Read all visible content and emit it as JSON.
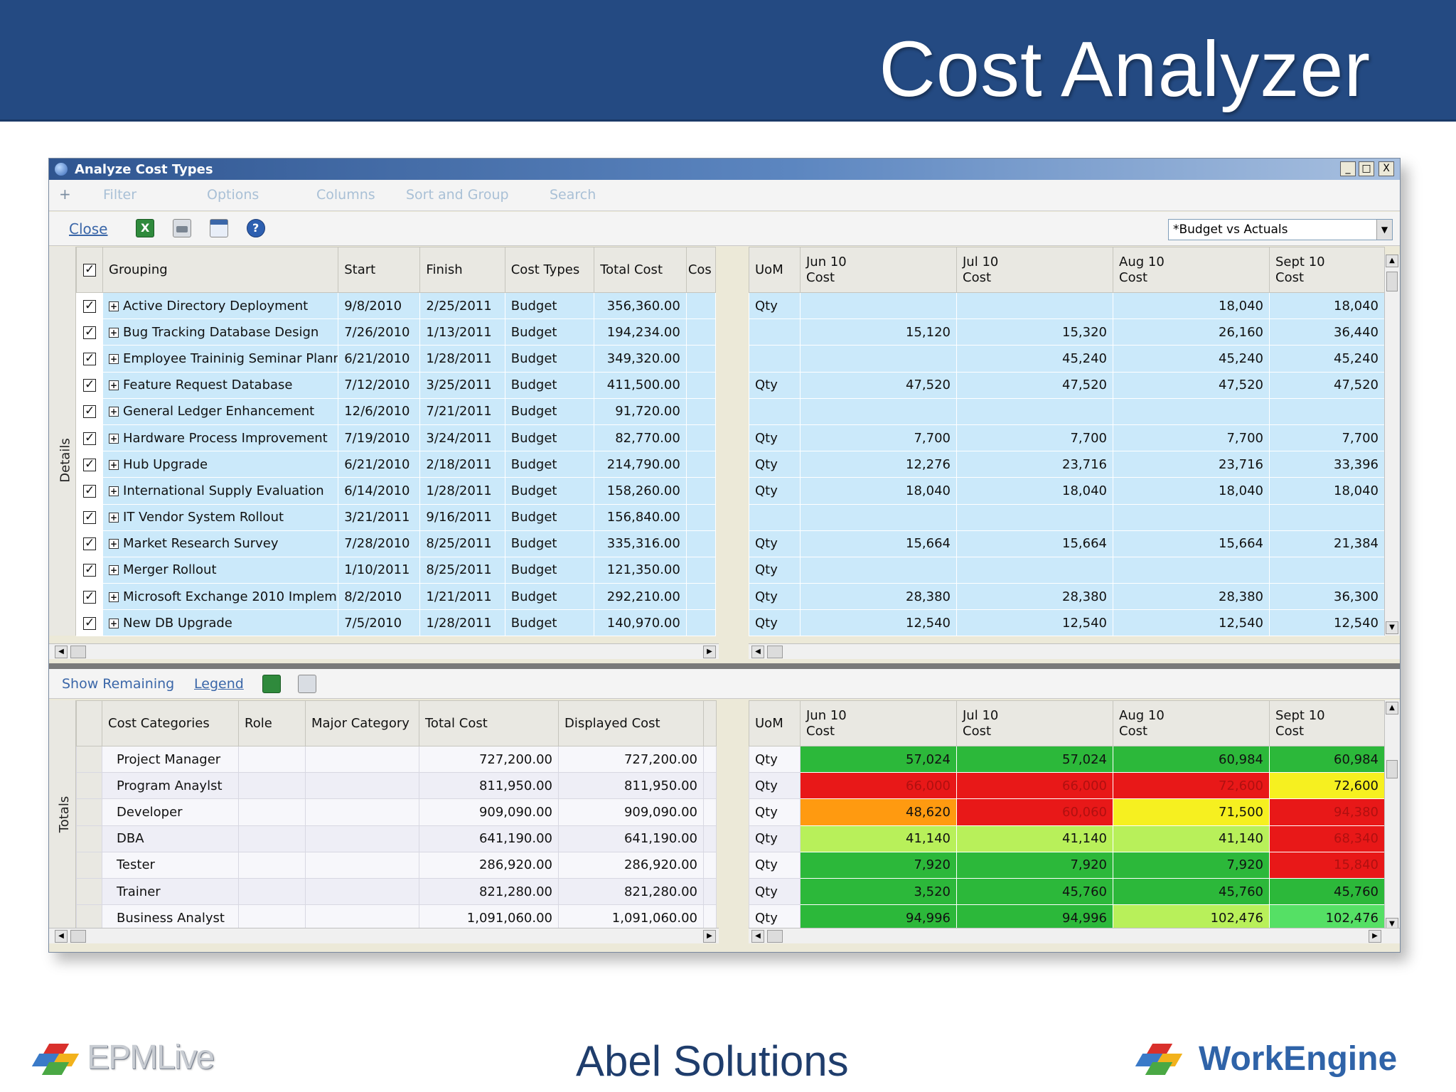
{
  "slide": {
    "title": "Cost Analyzer",
    "footer_company": "Abel Solutions",
    "footer_left_logo": "EPMLive",
    "footer_right_logo": "WorkEngine"
  },
  "window": {
    "title": "Analyze Cost Types",
    "controls": [
      "_",
      "□",
      "X"
    ]
  },
  "menu": {
    "plus": "+",
    "items": [
      "Filter",
      "Options",
      "Columns",
      "Sort and Group",
      "Search"
    ]
  },
  "toolbar": {
    "close_label": "Close",
    "icons": [
      "excel-icon",
      "print-icon",
      "calendar-icon",
      "help-icon"
    ],
    "view_selected": "*Budget vs Actuals"
  },
  "details": {
    "side_label": "Details",
    "headers": {
      "grouping": "Grouping",
      "start": "Start",
      "finish": "Finish",
      "cost_types": "Cost Types",
      "total_cost": "Total Cost",
      "cos": "Cos",
      "uom": "UoM",
      "periods": [
        {
          "month": "Jun 10",
          "sub": "Cost"
        },
        {
          "month": "Jul 10",
          "sub": "Cost"
        },
        {
          "month": "Aug 10",
          "sub": "Cost"
        },
        {
          "month": "Sept 10",
          "sub": "Cost"
        }
      ]
    },
    "rows": [
      {
        "name": "Active Directory Deployment",
        "start": "9/8/2010",
        "finish": "2/25/2011",
        "type": "Budget",
        "total": "356,360.00",
        "uom": "Qty",
        "jun": "",
        "jul": "",
        "aug": "18,040",
        "sep": "18,040"
      },
      {
        "name": "Bug Tracking Database Design",
        "start": "7/26/2010",
        "finish": "1/13/2011",
        "type": "Budget",
        "total": "194,234.00",
        "uom": "",
        "jun": "15,120",
        "jul": "15,320",
        "aug": "26,160",
        "sep": "36,440"
      },
      {
        "name": "Employee Traininig Seminar Plann",
        "start": "6/21/2010",
        "finish": "1/28/2011",
        "type": "Budget",
        "total": "349,320.00",
        "uom": "",
        "jun": "",
        "jul": "45,240",
        "aug": "45,240",
        "sep": "45,240"
      },
      {
        "name": "Feature Request Database",
        "start": "7/12/2010",
        "finish": "3/25/2011",
        "type": "Budget",
        "total": "411,500.00",
        "uom": "Qty",
        "jun": "47,520",
        "jul": "47,520",
        "aug": "47,520",
        "sep": "47,520"
      },
      {
        "name": "General Ledger Enhancement",
        "start": "12/6/2010",
        "finish": "7/21/2011",
        "type": "Budget",
        "total": "91,720.00",
        "uom": "",
        "jun": "",
        "jul": "",
        "aug": "",
        "sep": ""
      },
      {
        "name": "Hardware Process Improvement",
        "start": "7/19/2010",
        "finish": "3/24/2011",
        "type": "Budget",
        "total": "82,770.00",
        "uom": "Qty",
        "jun": "7,700",
        "jul": "7,700",
        "aug": "7,700",
        "sep": "7,700"
      },
      {
        "name": "Hub Upgrade",
        "start": "6/21/2010",
        "finish": "2/18/2011",
        "type": "Budget",
        "total": "214,790.00",
        "uom": "Qty",
        "jun": "12,276",
        "jul": "23,716",
        "aug": "23,716",
        "sep": "33,396"
      },
      {
        "name": "International Supply Evaluation",
        "start": "6/14/2010",
        "finish": "1/28/2011",
        "type": "Budget",
        "total": "158,260.00",
        "uom": "Qty",
        "jun": "18,040",
        "jul": "18,040",
        "aug": "18,040",
        "sep": "18,040"
      },
      {
        "name": "IT Vendor System Rollout",
        "start": "3/21/2011",
        "finish": "9/16/2011",
        "type": "Budget",
        "total": "156,840.00",
        "uom": "",
        "jun": "",
        "jul": "",
        "aug": "",
        "sep": ""
      },
      {
        "name": "Market Research Survey",
        "start": "7/28/2010",
        "finish": "8/25/2011",
        "type": "Budget",
        "total": "335,316.00",
        "uom": "Qty",
        "jun": "15,664",
        "jul": "15,664",
        "aug": "15,664",
        "sep": "21,384"
      },
      {
        "name": "Merger Rollout",
        "start": "1/10/2011",
        "finish": "8/25/2011",
        "type": "Budget",
        "total": "121,350.00",
        "uom": "Qty",
        "jun": "",
        "jul": "",
        "aug": "",
        "sep": ""
      },
      {
        "name": "Microsoft Exchange 2010 Implem",
        "start": "8/2/2010",
        "finish": "1/21/2011",
        "type": "Budget",
        "total": "292,210.00",
        "uom": "Qty",
        "jun": "28,380",
        "jul": "28,380",
        "aug": "28,380",
        "sep": "36,300"
      },
      {
        "name": "New DB Upgrade",
        "start": "7/5/2010",
        "finish": "1/28/2011",
        "type": "Budget",
        "total": "140,970.00",
        "uom": "Qty",
        "jun": "12,540",
        "jul": "12,540",
        "aug": "12,540",
        "sep": "12,540"
      }
    ]
  },
  "lower_toolbar": {
    "show_remaining": "Show Remaining",
    "legend": "Legend"
  },
  "totals": {
    "side_label": "Totals",
    "headers": {
      "cost_categories": "Cost Categories",
      "role": "Role",
      "major_category": "Major Category",
      "total_cost": "Total Cost",
      "displayed_cost": "Displayed Cost",
      "uom": "UoM",
      "periods": [
        {
          "month": "Jun 10",
          "sub": "Cost"
        },
        {
          "month": "Jul 10",
          "sub": "Cost"
        },
        {
          "month": "Aug 10",
          "sub": "Cost"
        },
        {
          "month": "Sept 10",
          "sub": "Cost"
        }
      ]
    },
    "status_colors": {
      "green": "#2cb83a",
      "light_green": "#b8f05a",
      "bright_green": "#55e065",
      "yellow": "#f6f020",
      "orange": "#ff9a10",
      "red": "#e81818"
    },
    "rows": [
      {
        "category": "Project Manager",
        "total": "727,200.00",
        "displayed": "727,200.00",
        "uom": "Qty",
        "cells": [
          {
            "v": "57,024",
            "c": "green"
          },
          {
            "v": "57,024",
            "c": "green"
          },
          {
            "v": "60,984",
            "c": "green"
          },
          {
            "v": "60,984",
            "c": "green"
          }
        ]
      },
      {
        "category": "Program Anaylst",
        "total": "811,950.00",
        "displayed": "811,950.00",
        "uom": "Qty",
        "cells": [
          {
            "v": "66,000",
            "c": "red"
          },
          {
            "v": "66,000",
            "c": "red"
          },
          {
            "v": "72,600",
            "c": "red"
          },
          {
            "v": "72,600",
            "c": "yellow"
          }
        ]
      },
      {
        "category": "Developer",
        "total": "909,090.00",
        "displayed": "909,090.00",
        "uom": "Qty",
        "cells": [
          {
            "v": "48,620",
            "c": "orange"
          },
          {
            "v": "60,060",
            "c": "red"
          },
          {
            "v": "71,500",
            "c": "yellow"
          },
          {
            "v": "94,380",
            "c": "red"
          }
        ]
      },
      {
        "category": "DBA",
        "total": "641,190.00",
        "displayed": "641,190.00",
        "uom": "Qty",
        "cells": [
          {
            "v": "41,140",
            "c": "light_green"
          },
          {
            "v": "41,140",
            "c": "light_green"
          },
          {
            "v": "41,140",
            "c": "light_green"
          },
          {
            "v": "68,340",
            "c": "red"
          }
        ]
      },
      {
        "category": "Tester",
        "total": "286,920.00",
        "displayed": "286,920.00",
        "uom": "Qty",
        "cells": [
          {
            "v": "7,920",
            "c": "green"
          },
          {
            "v": "7,920",
            "c": "green"
          },
          {
            "v": "7,920",
            "c": "green"
          },
          {
            "v": "15,840",
            "c": "red"
          }
        ]
      },
      {
        "category": "Trainer",
        "total": "821,280.00",
        "displayed": "821,280.00",
        "uom": "Qty",
        "cells": [
          {
            "v": "3,520",
            "c": "green"
          },
          {
            "v": "45,760",
            "c": "green"
          },
          {
            "v": "45,760",
            "c": "green"
          },
          {
            "v": "45,760",
            "c": "green"
          }
        ]
      },
      {
        "category": "Business Analyst",
        "total": "1,091,060.00",
        "displayed": "1,091,060.00",
        "uom": "Qty",
        "cells": [
          {
            "v": "94,996",
            "c": "green"
          },
          {
            "v": "94,996",
            "c": "green"
          },
          {
            "v": "102,476",
            "c": "light_green"
          },
          {
            "v": "102,476",
            "c": "bright_green"
          }
        ]
      }
    ]
  }
}
